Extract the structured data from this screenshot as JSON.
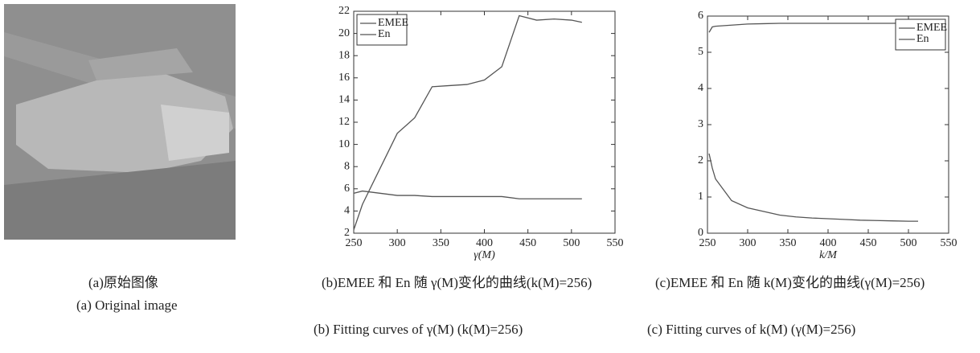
{
  "image_panel": {
    "caption_cn": "(a)原始图像",
    "caption_en": "(a) Original image"
  },
  "chart_data": [
    {
      "type": "line",
      "xlabel": "γ(M)",
      "caption_cn": "(b)EMEE 和 En 随 γ(M)变化的曲线(k(M)=256)",
      "caption_en": "(b) Fitting curves of γ(M) (k(M)=256)",
      "x": [
        250,
        260,
        280,
        300,
        320,
        340,
        360,
        380,
        400,
        420,
        440,
        460,
        480,
        500,
        512
      ],
      "series": [
        {
          "name": "EMEE",
          "color": "#555555",
          "values": [
            2.3,
            4.6,
            7.8,
            11.0,
            12.4,
            15.2,
            15.3,
            15.4,
            15.8,
            17.0,
            21.6,
            21.2,
            21.3,
            21.2,
            21.0
          ]
        },
        {
          "name": "En",
          "color": "#555555",
          "values": [
            5.6,
            5.8,
            5.6,
            5.4,
            5.4,
            5.3,
            5.3,
            5.3,
            5.3,
            5.3,
            5.1,
            5.1,
            5.1,
            5.1,
            5.1
          ]
        }
      ],
      "xlim": [
        250,
        550
      ],
      "xticks": [
        250,
        300,
        350,
        400,
        450,
        500,
        550
      ],
      "ylim": [
        2,
        22
      ],
      "yticks": [
        2,
        4,
        6,
        8,
        10,
        12,
        14,
        16,
        18,
        20,
        22
      ],
      "legend": "upper left"
    },
    {
      "type": "line",
      "xlabel": "k/M",
      "caption_cn": "(c)EMEE 和 En 随 k(M)变化的曲线(γ(M)=256)",
      "caption_en": "(c) Fitting curves of k(M) (γ(M)=256)",
      "x": [
        252,
        256,
        260,
        280,
        300,
        320,
        340,
        360,
        380,
        400,
        420,
        440,
        460,
        480,
        500,
        512
      ],
      "series": [
        {
          "name": "EMEE",
          "color": "#555555",
          "values": [
            2.2,
            1.8,
            1.5,
            0.9,
            0.7,
            0.6,
            0.5,
            0.45,
            0.42,
            0.4,
            0.38,
            0.36,
            0.35,
            0.34,
            0.33,
            0.33
          ]
        },
        {
          "name": "En",
          "color": "#555555",
          "values": [
            5.55,
            5.7,
            5.72,
            5.75,
            5.78,
            5.79,
            5.8,
            5.8,
            5.8,
            5.8,
            5.8,
            5.8,
            5.8,
            5.8,
            5.81,
            5.82
          ]
        }
      ],
      "xlim": [
        250,
        550
      ],
      "xticks": [
        250,
        300,
        350,
        400,
        450,
        500,
        550
      ],
      "ylim": [
        0,
        6
      ],
      "yticks": [
        0,
        1,
        2,
        3,
        4,
        5,
        6
      ],
      "legend": "upper right"
    }
  ]
}
